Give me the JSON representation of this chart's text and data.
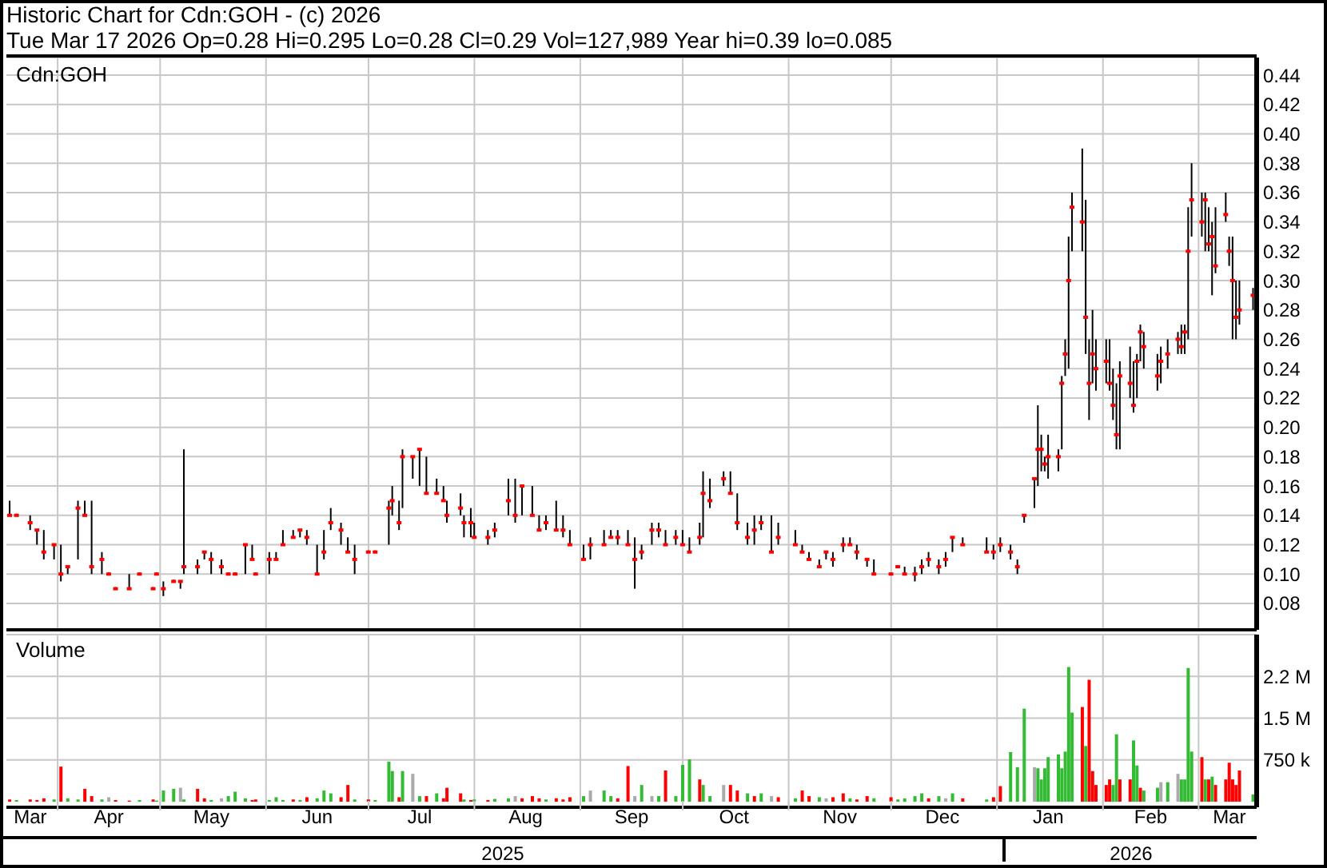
{
  "chart_data": [
    {
      "type": "candlestick",
      "title": "Historic Chart for Cdn:GOH - (c) 2026",
      "subtitle": "Tue Mar 17 2026  Op=0.28  Hi=0.295  Lo=0.28  Cl=0.29  Vol=127,989  Year hi=0.39  lo=0.085",
      "annotations": [
        "Cdn:GOH"
      ],
      "x": [
        "2025-03-18",
        "2025-03-20",
        "2025-03-24",
        "2025-03-26",
        "2025-03-28",
        "2025-03-31",
        "2025-04-02",
        "2025-04-04",
        "2025-04-07",
        "2025-04-09",
        "2025-04-11",
        "2025-04-14",
        "2025-04-16",
        "2025-04-18",
        "2025-04-22",
        "2025-04-25",
        "2025-04-29",
        "2025-04-30",
        "2025-05-02",
        "2025-05-05",
        "2025-05-07",
        "2025-05-08",
        "2025-05-12",
        "2025-05-14",
        "2025-05-16",
        "2025-05-19",
        "2025-05-21",
        "2025-05-23",
        "2025-05-26",
        "2025-05-28",
        "2025-05-29",
        "2025-06-02",
        "2025-06-04",
        "2025-06-06",
        "2025-06-09",
        "2025-06-11",
        "2025-06-13",
        "2025-06-16",
        "2025-06-18",
        "2025-06-20",
        "2025-06-23",
        "2025-06-25",
        "2025-06-27",
        "2025-07-01",
        "2025-07-03",
        "2025-07-07",
        "2025-07-08",
        "2025-07-10",
        "2025-07-11",
        "2025-07-14",
        "2025-07-16",
        "2025-07-18",
        "2025-07-21",
        "2025-07-23",
        "2025-07-24",
        "2025-07-28",
        "2025-07-29",
        "2025-07-31",
        "2025-08-01",
        "2025-08-05",
        "2025-08-07",
        "2025-08-11",
        "2025-08-13",
        "2025-08-15",
        "2025-08-18",
        "2025-08-20",
        "2025-08-22",
        "2025-08-25",
        "2025-08-27",
        "2025-08-29",
        "2025-09-02",
        "2025-09-04",
        "2025-09-08",
        "2025-09-10",
        "2025-09-12",
        "2025-09-15",
        "2025-09-17",
        "2025-09-19",
        "2025-09-22",
        "2025-09-24",
        "2025-09-26",
        "2025-09-29",
        "2025-10-01",
        "2025-10-03",
        "2025-10-06",
        "2025-10-07",
        "2025-10-09",
        "2025-10-13",
        "2025-10-15",
        "2025-10-17",
        "2025-10-20",
        "2025-10-22",
        "2025-10-24",
        "2025-10-27",
        "2025-10-29",
        "2025-11-03",
        "2025-11-05",
        "2025-11-07",
        "2025-11-10",
        "2025-11-12",
        "2025-11-14",
        "2025-11-17",
        "2025-11-19",
        "2025-11-21",
        "2025-11-24",
        "2025-11-26",
        "2025-12-01",
        "2025-12-03",
        "2025-12-05",
        "2025-12-08",
        "2025-12-10",
        "2025-12-12",
        "2025-12-15",
        "2025-12-17",
        "2025-12-19",
        "2025-12-22",
        "2025-12-29",
        "2025-12-31",
        "2026-01-02",
        "2026-01-05",
        "2026-01-07",
        "2026-01-09",
        "2026-01-12",
        "2026-01-13",
        "2026-01-14",
        "2026-01-15",
        "2026-01-16",
        "2026-01-19",
        "2026-01-20",
        "2026-01-21",
        "2026-01-22",
        "2026-01-23",
        "2026-01-26",
        "2026-01-27",
        "2026-01-28",
        "2026-01-29",
        "2026-01-30",
        "2026-02-02",
        "2026-02-03",
        "2026-02-04",
        "2026-02-05",
        "2026-02-06",
        "2026-02-09",
        "2026-02-10",
        "2026-02-11",
        "2026-02-12",
        "2026-02-13",
        "2026-02-17",
        "2026-02-18",
        "2026-02-20",
        "2026-02-23",
        "2026-02-24",
        "2026-02-25",
        "2026-02-26",
        "2026-02-27",
        "2026-03-02",
        "2026-03-03",
        "2026-03-04",
        "2026-03-05",
        "2026-03-06",
        "2026-03-09",
        "2026-03-10",
        "2026-03-11",
        "2026-03-12",
        "2026-03-13",
        "2026-03-17"
      ],
      "ohlc": [
        [
          0.14,
          0.15,
          0.14,
          0.14
        ],
        [
          0.14,
          0.14,
          0.14,
          0.14
        ],
        [
          0.135,
          0.14,
          0.13,
          0.135
        ],
        [
          0.13,
          0.13,
          0.12,
          0.13
        ],
        [
          0.115,
          0.13,
          0.11,
          0.115
        ],
        [
          0.12,
          0.12,
          0.11,
          0.12
        ],
        [
          0.1,
          0.12,
          0.095,
          0.1
        ],
        [
          0.105,
          0.105,
          0.1,
          0.105
        ],
        [
          0.145,
          0.15,
          0.11,
          0.145
        ],
        [
          0.14,
          0.15,
          0.14,
          0.14
        ],
        [
          0.105,
          0.15,
          0.1,
          0.105
        ],
        [
          0.11,
          0.115,
          0.1,
          0.11
        ],
        [
          0.1,
          0.1,
          0.1,
          0.1
        ],
        [
          0.09,
          0.09,
          0.09,
          0.09
        ],
        [
          0.09,
          0.1,
          0.09,
          0.09
        ],
        [
          0.1,
          0.1,
          0.1,
          0.1
        ],
        [
          0.09,
          0.09,
          0.09,
          0.09
        ],
        [
          0.1,
          0.1,
          0.1,
          0.1
        ],
        [
          0.09,
          0.095,
          0.085,
          0.09
        ],
        [
          0.095,
          0.095,
          0.095,
          0.095
        ],
        [
          0.095,
          0.095,
          0.09,
          0.095
        ],
        [
          0.105,
          0.185,
          0.1,
          0.105
        ],
        [
          0.105,
          0.11,
          0.1,
          0.105
        ],
        [
          0.115,
          0.115,
          0.11,
          0.115
        ],
        [
          0.11,
          0.115,
          0.1,
          0.11
        ],
        [
          0.105,
          0.11,
          0.1,
          0.105
        ],
        [
          0.1,
          0.1,
          0.1,
          0.1
        ],
        [
          0.1,
          0.1,
          0.1,
          0.1
        ],
        [
          0.12,
          0.12,
          0.1,
          0.12
        ],
        [
          0.11,
          0.12,
          0.11,
          0.11
        ],
        [
          0.1,
          0.1,
          0.1,
          0.1
        ],
        [
          0.11,
          0.115,
          0.1,
          0.11
        ],
        [
          0.11,
          0.115,
          0.11,
          0.11
        ],
        [
          0.12,
          0.13,
          0.12,
          0.12
        ],
        [
          0.125,
          0.13,
          0.125,
          0.125
        ],
        [
          0.13,
          0.13,
          0.125,
          0.13
        ],
        [
          0.125,
          0.13,
          0.12,
          0.125
        ],
        [
          0.1,
          0.12,
          0.1,
          0.1
        ],
        [
          0.115,
          0.13,
          0.11,
          0.115
        ],
        [
          0.135,
          0.145,
          0.13,
          0.135
        ],
        [
          0.13,
          0.135,
          0.12,
          0.13
        ],
        [
          0.115,
          0.125,
          0.115,
          0.115
        ],
        [
          0.11,
          0.12,
          0.1,
          0.11
        ],
        [
          0.115,
          0.115,
          0.115,
          0.115
        ],
        [
          0.115,
          0.115,
          0.115,
          0.115
        ],
        [
          0.145,
          0.15,
          0.12,
          0.145
        ],
        [
          0.15,
          0.16,
          0.14,
          0.15
        ],
        [
          0.135,
          0.15,
          0.13,
          0.135
        ],
        [
          0.18,
          0.185,
          0.145,
          0.18
        ],
        [
          0.18,
          0.18,
          0.165,
          0.18
        ],
        [
          0.185,
          0.185,
          0.16,
          0.185
        ],
        [
          0.155,
          0.18,
          0.155,
          0.155
        ],
        [
          0.155,
          0.165,
          0.155,
          0.155
        ],
        [
          0.15,
          0.16,
          0.15,
          0.15
        ],
        [
          0.14,
          0.15,
          0.135,
          0.14
        ],
        [
          0.145,
          0.155,
          0.14,
          0.145
        ],
        [
          0.135,
          0.14,
          0.125,
          0.135
        ],
        [
          0.135,
          0.145,
          0.125,
          0.135
        ],
        [
          0.125,
          0.135,
          0.125,
          0.125
        ],
        [
          0.125,
          0.13,
          0.12,
          0.125
        ],
        [
          0.13,
          0.135,
          0.125,
          0.13
        ],
        [
          0.15,
          0.165,
          0.14,
          0.15
        ],
        [
          0.14,
          0.165,
          0.135,
          0.14
        ],
        [
          0.16,
          0.16,
          0.14,
          0.16
        ],
        [
          0.14,
          0.16,
          0.14,
          0.14
        ],
        [
          0.13,
          0.14,
          0.13,
          0.13
        ],
        [
          0.135,
          0.14,
          0.13,
          0.135
        ],
        [
          0.13,
          0.15,
          0.13,
          0.13
        ],
        [
          0.13,
          0.14,
          0.125,
          0.13
        ],
        [
          0.12,
          0.13,
          0.12,
          0.12
        ],
        [
          0.11,
          0.12,
          0.11,
          0.11
        ],
        [
          0.12,
          0.125,
          0.11,
          0.12
        ],
        [
          0.12,
          0.13,
          0.12,
          0.12
        ],
        [
          0.125,
          0.13,
          0.125,
          0.125
        ],
        [
          0.125,
          0.13,
          0.12,
          0.125
        ],
        [
          0.12,
          0.13,
          0.12,
          0.12
        ],
        [
          0.11,
          0.125,
          0.09,
          0.11
        ],
        [
          0.115,
          0.12,
          0.11,
          0.115
        ],
        [
          0.13,
          0.135,
          0.12,
          0.13
        ],
        [
          0.13,
          0.135,
          0.125,
          0.13
        ],
        [
          0.12,
          0.13,
          0.12,
          0.12
        ],
        [
          0.125,
          0.13,
          0.12,
          0.125
        ],
        [
          0.12,
          0.13,
          0.12,
          0.12
        ],
        [
          0.115,
          0.125,
          0.115,
          0.115
        ],
        [
          0.125,
          0.135,
          0.12,
          0.125
        ],
        [
          0.155,
          0.17,
          0.125,
          0.155
        ],
        [
          0.15,
          0.165,
          0.145,
          0.15
        ],
        [
          0.165,
          0.17,
          0.16,
          0.165
        ],
        [
          0.155,
          0.17,
          0.155,
          0.155
        ],
        [
          0.135,
          0.155,
          0.13,
          0.135
        ],
        [
          0.125,
          0.135,
          0.12,
          0.125
        ],
        [
          0.13,
          0.14,
          0.12,
          0.13
        ],
        [
          0.135,
          0.14,
          0.13,
          0.135
        ],
        [
          0.115,
          0.14,
          0.115,
          0.115
        ],
        [
          0.125,
          0.135,
          0.12,
          0.125
        ],
        [
          0.12,
          0.13,
          0.12,
          0.12
        ],
        [
          0.115,
          0.12,
          0.115,
          0.115
        ],
        [
          0.11,
          0.115,
          0.11,
          0.11
        ],
        [
          0.105,
          0.11,
          0.105,
          0.105
        ],
        [
          0.115,
          0.115,
          0.11,
          0.115
        ],
        [
          0.11,
          0.115,
          0.105,
          0.11
        ],
        [
          0.12,
          0.125,
          0.115,
          0.12
        ],
        [
          0.12,
          0.125,
          0.12,
          0.12
        ],
        [
          0.115,
          0.12,
          0.11,
          0.115
        ],
        [
          0.11,
          0.11,
          0.105,
          0.11
        ],
        [
          0.1,
          0.11,
          0.1,
          0.1
        ],
        [
          0.1,
          0.1,
          0.1,
          0.1
        ],
        [
          0.105,
          0.105,
          0.105,
          0.105
        ],
        [
          0.1,
          0.105,
          0.1,
          0.1
        ],
        [
          0.1,
          0.105,
          0.095,
          0.1
        ],
        [
          0.105,
          0.11,
          0.1,
          0.105
        ],
        [
          0.11,
          0.115,
          0.105,
          0.11
        ],
        [
          0.105,
          0.11,
          0.1,
          0.105
        ],
        [
          0.11,
          0.115,
          0.105,
          0.11
        ],
        [
          0.125,
          0.125,
          0.115,
          0.125
        ],
        [
          0.12,
          0.125,
          0.12,
          0.12
        ],
        [
          0.115,
          0.125,
          0.115,
          0.115
        ],
        [
          0.115,
          0.12,
          0.11,
          0.115
        ],
        [
          0.12,
          0.125,
          0.115,
          0.12
        ],
        [
          0.115,
          0.12,
          0.11,
          0.115
        ],
        [
          0.105,
          0.11,
          0.1,
          0.105
        ],
        [
          0.14,
          0.14,
          0.135,
          0.14
        ],
        [
          0.165,
          0.165,
          0.145,
          0.165
        ],
        [
          0.185,
          0.215,
          0.16,
          0.185
        ],
        [
          0.185,
          0.195,
          0.17,
          0.185
        ],
        [
          0.175,
          0.18,
          0.17,
          0.175
        ],
        [
          0.18,
          0.195,
          0.165,
          0.18
        ],
        [
          0.18,
          0.185,
          0.17,
          0.18
        ],
        [
          0.23,
          0.235,
          0.185,
          0.23
        ],
        [
          0.25,
          0.26,
          0.235,
          0.25
        ],
        [
          0.3,
          0.33,
          0.24,
          0.3
        ],
        [
          0.35,
          0.36,
          0.32,
          0.35
        ],
        [
          0.34,
          0.39,
          0.32,
          0.34
        ],
        [
          0.275,
          0.355,
          0.25,
          0.275
        ],
        [
          0.23,
          0.26,
          0.205,
          0.23
        ],
        [
          0.25,
          0.28,
          0.23,
          0.25
        ],
        [
          0.24,
          0.26,
          0.225,
          0.24
        ],
        [
          0.245,
          0.26,
          0.23,
          0.245
        ],
        [
          0.23,
          0.26,
          0.225,
          0.23
        ],
        [
          0.215,
          0.24,
          0.205,
          0.215
        ],
        [
          0.195,
          0.23,
          0.185,
          0.195
        ],
        [
          0.235,
          0.245,
          0.185,
          0.235
        ],
        [
          0.23,
          0.255,
          0.22,
          0.23
        ],
        [
          0.215,
          0.245,
          0.21,
          0.215
        ],
        [
          0.245,
          0.25,
          0.22,
          0.245
        ],
        [
          0.265,
          0.27,
          0.245,
          0.265
        ],
        [
          0.255,
          0.265,
          0.24,
          0.255
        ],
        [
          0.235,
          0.25,
          0.225,
          0.235
        ],
        [
          0.245,
          0.255,
          0.23,
          0.245
        ],
        [
          0.25,
          0.26,
          0.24,
          0.25
        ],
        [
          0.26,
          0.265,
          0.25,
          0.26
        ],
        [
          0.255,
          0.27,
          0.25,
          0.255
        ],
        [
          0.265,
          0.27,
          0.25,
          0.265
        ],
        [
          0.32,
          0.35,
          0.26,
          0.32
        ],
        [
          0.355,
          0.38,
          0.33,
          0.355
        ],
        [
          0.34,
          0.36,
          0.33,
          0.34
        ],
        [
          0.355,
          0.36,
          0.32,
          0.355
        ],
        [
          0.325,
          0.35,
          0.32,
          0.325
        ],
        [
          0.33,
          0.34,
          0.29,
          0.33
        ],
        [
          0.31,
          0.35,
          0.305,
          0.31
        ],
        [
          0.345,
          0.36,
          0.34,
          0.345
        ],
        [
          0.32,
          0.33,
          0.31,
          0.32
        ],
        [
          0.3,
          0.33,
          0.26,
          0.3
        ],
        [
          0.275,
          0.3,
          0.26,
          0.275
        ],
        [
          0.28,
          0.3,
          0.27,
          0.28
        ],
        [
          0.29,
          0.295,
          0.28,
          0.29
        ]
      ],
      "xlim": [
        "2025-03-17",
        "2026-03-18"
      ],
      "xticks": [
        {
          "value": "2025-04-01",
          "label": null
        },
        {
          "value": "2025-05-01",
          "label": null
        },
        {
          "value": "2025-06-01",
          "label": null
        },
        {
          "value": "2025-07-01",
          "label": null
        },
        {
          "value": "2025-08-01",
          "label": null
        },
        {
          "value": "2025-09-01",
          "label": null
        },
        {
          "value": "2025-10-01",
          "label": null
        },
        {
          "value": "2025-11-01",
          "label": null
        },
        {
          "value": "2025-12-01",
          "label": null
        },
        {
          "value": "2026-01-01",
          "label": null
        },
        {
          "value": "2026-02-01",
          "label": null
        },
        {
          "value": "2026-03-01",
          "label": null
        }
      ],
      "ylim": [
        0.062,
        0.452
      ],
      "yticks": [
        0.08,
        {
          "value": 0.1,
          "label": "0.10"
        },
        0.12,
        0.14,
        0.16,
        0.18,
        {
          "value": 0.2,
          "label": "0.20"
        },
        0.22,
        0.24,
        0.26,
        0.28,
        {
          "value": 0.3,
          "label": "0.30"
        },
        0.32,
        0.34,
        0.36,
        0.38,
        {
          "value": 0.4,
          "label": "0.40"
        },
        0.42,
        0.44
      ],
      "grid": true,
      "tick_labels": "y"
    },
    {
      "type": "bar",
      "title": "Volume",
      "x": [
        "2025-03-18",
        "2025-03-20",
        "2025-03-24",
        "2025-03-26",
        "2025-03-28",
        "2025-03-31",
        "2025-04-02",
        "2025-04-04",
        "2025-04-07",
        "2025-04-09",
        "2025-04-11",
        "2025-04-14",
        "2025-04-16",
        "2025-04-18",
        "2025-04-22",
        "2025-04-25",
        "2025-04-29",
        "2025-04-30",
        "2025-05-02",
        "2025-05-05",
        "2025-05-07",
        "2025-05-08",
        "2025-05-12",
        "2025-05-14",
        "2025-05-16",
        "2025-05-19",
        "2025-05-21",
        "2025-05-23",
        "2025-05-26",
        "2025-05-28",
        "2025-05-29",
        "2025-06-02",
        "2025-06-04",
        "2025-06-06",
        "2025-06-09",
        "2025-06-11",
        "2025-06-13",
        "2025-06-16",
        "2025-06-18",
        "2025-06-20",
        "2025-06-23",
        "2025-06-25",
        "2025-06-27",
        "2025-07-01",
        "2025-07-03",
        "2025-07-07",
        "2025-07-08",
        "2025-07-10",
        "2025-07-11",
        "2025-07-14",
        "2025-07-16",
        "2025-07-18",
        "2025-07-21",
        "2025-07-23",
        "2025-07-24",
        "2025-07-28",
        "2025-07-29",
        "2025-07-31",
        "2025-08-01",
        "2025-08-05",
        "2025-08-07",
        "2025-08-11",
        "2025-08-13",
        "2025-08-15",
        "2025-08-18",
        "2025-08-20",
        "2025-08-22",
        "2025-08-25",
        "2025-08-27",
        "2025-08-29",
        "2025-09-02",
        "2025-09-04",
        "2025-09-08",
        "2025-09-10",
        "2025-09-12",
        "2025-09-15",
        "2025-09-17",
        "2025-09-19",
        "2025-09-22",
        "2025-09-24",
        "2025-09-26",
        "2025-09-29",
        "2025-10-01",
        "2025-10-03",
        "2025-10-06",
        "2025-10-07",
        "2025-10-09",
        "2025-10-13",
        "2025-10-15",
        "2025-10-17",
        "2025-10-20",
        "2025-10-22",
        "2025-10-24",
        "2025-10-27",
        "2025-10-29",
        "2025-11-03",
        "2025-11-05",
        "2025-11-07",
        "2025-11-10",
        "2025-11-12",
        "2025-11-14",
        "2025-11-17",
        "2025-11-19",
        "2025-11-21",
        "2025-11-24",
        "2025-11-26",
        "2025-12-01",
        "2025-12-03",
        "2025-12-05",
        "2025-12-08",
        "2025-12-10",
        "2025-12-12",
        "2025-12-15",
        "2025-12-17",
        "2025-12-19",
        "2025-12-22",
        "2025-12-29",
        "2025-12-31",
        "2026-01-02",
        "2026-01-05",
        "2026-01-07",
        "2026-01-09",
        "2026-01-12",
        "2026-01-13",
        "2026-01-14",
        "2026-01-15",
        "2026-01-16",
        "2026-01-19",
        "2026-01-20",
        "2026-01-21",
        "2026-01-22",
        "2026-01-23",
        "2026-01-26",
        "2026-01-27",
        "2026-01-28",
        "2026-01-29",
        "2026-01-30",
        "2026-02-02",
        "2026-02-03",
        "2026-02-04",
        "2026-02-05",
        "2026-02-06",
        "2026-02-09",
        "2026-02-10",
        "2026-02-11",
        "2026-02-12",
        "2026-02-13",
        "2026-02-17",
        "2026-02-18",
        "2026-02-20",
        "2026-02-23",
        "2026-02-24",
        "2026-02-25",
        "2026-02-26",
        "2026-02-27",
        "2026-03-02",
        "2026-03-03",
        "2026-03-04",
        "2026-03-05",
        "2026-03-06",
        "2026-03-09",
        "2026-03-10",
        "2026-03-11",
        "2026-03-12",
        "2026-03-13",
        "2026-03-17"
      ],
      "values": [
        40000,
        30000,
        40000,
        30000,
        60000,
        40000,
        630000,
        60000,
        40000,
        230000,
        100000,
        40000,
        80000,
        30000,
        20000,
        30000,
        40000,
        20000,
        200000,
        230000,
        250000,
        40000,
        230000,
        60000,
        30000,
        60000,
        100000,
        180000,
        60000,
        30000,
        40000,
        30000,
        80000,
        30000,
        40000,
        30000,
        80000,
        60000,
        200000,
        150000,
        80000,
        300000,
        40000,
        40000,
        30000,
        720000,
        550000,
        80000,
        550000,
        500000,
        100000,
        100000,
        150000,
        60000,
        250000,
        150000,
        40000,
        30000,
        40000,
        30000,
        50000,
        60000,
        100000,
        60000,
        100000,
        60000,
        40000,
        60000,
        40000,
        80000,
        100000,
        200000,
        200000,
        100000,
        60000,
        640000,
        100000,
        300000,
        100000,
        100000,
        560000,
        100000,
        660000,
        760000,
        400000,
        300000,
        100000,
        300000,
        300000,
        200000,
        150000,
        100000,
        150000,
        100000,
        80000,
        60000,
        200000,
        100000,
        80000,
        60000,
        80000,
        150000,
        60000,
        40000,
        100000,
        60000,
        80000,
        40000,
        60000,
        100000,
        150000,
        60000,
        100000,
        60000,
        150000,
        60000,
        40000,
        80000,
        280000,
        890000,
        620000,
        1670000,
        620000,
        600000,
        400000,
        600000,
        800000,
        850000,
        600000,
        900000,
        2420000,
        1600000,
        1700000,
        1000000,
        2190000,
        550000,
        300000,
        300000,
        400000,
        300000,
        1210000,
        400000,
        400000,
        1100000,
        650000,
        250000,
        200000,
        250000,
        350000,
        350000,
        500000,
        400000,
        400000,
        2400000,
        900000,
        800000,
        400000,
        400000,
        450000,
        300000,
        400000,
        700000,
        400000,
        300000,
        560000,
        130000
      ],
      "colors": [
        "#ff0000",
        "#33bb33",
        "#ff0000",
        "#ff0000",
        "#ff0000",
        "#33bb33",
        "#ff0000",
        "#33bb33",
        "#33bb33",
        "#ff0000",
        "#ff0000",
        "#33bb33",
        "#aaaaaa",
        "#ff0000",
        "#ff0000",
        "#33bb33",
        "#ff0000",
        "#33bb33",
        "#33bb33",
        "#33bb33",
        "#aaaaaa",
        "#33bb33",
        "#ff0000",
        "#ff0000",
        "#33bb33",
        "#aaaaaa",
        "#33bb33",
        "#33bb33",
        "#33bb33",
        "#ff0000",
        "#ff0000",
        "#33bb33",
        "#33bb33",
        "#33bb33",
        "#ff0000",
        "#33bb33",
        "#ff0000",
        "#33bb33",
        "#33bb33",
        "#33bb33",
        "#ff0000",
        "#ff0000",
        "#33bb33",
        "#ff0000",
        "#33bb33",
        "#33bb33",
        "#33bb33",
        "#ff0000",
        "#33bb33",
        "#aaaaaa",
        "#33bb33",
        "#ff0000",
        "#33bb33",
        "#ff0000",
        "#ff0000",
        "#ff0000",
        "#33bb33",
        "#ff0000",
        "#33bb33",
        "#ff0000",
        "#33bb33",
        "#33bb33",
        "#aaaaaa",
        "#ff0000",
        "#ff0000",
        "#ff0000",
        "#33bb33",
        "#ff0000",
        "#ff0000",
        "#ff0000",
        "#33bb33",
        "#aaaaaa",
        "#33bb33",
        "#33bb33",
        "#ff0000",
        "#ff0000",
        "#aaaaaa",
        "#33bb33",
        "#aaaaaa",
        "#33bb33",
        "#ff0000",
        "#33bb33",
        "#33bb33",
        "#33bb33",
        "#ff0000",
        "#33bb33",
        "#33bb33",
        "#aaaaaa",
        "#ff0000",
        "#ff0000",
        "#33bb33",
        "#ff0000",
        "#33bb33",
        "#aaaaaa",
        "#ff0000",
        "#33bb33",
        "#ff0000",
        "#ff0000",
        "#33bb33",
        "#aaaaaa",
        "#ff0000",
        "#ff0000",
        "#33bb33",
        "#ff0000",
        "#ff0000",
        "#33bb33",
        "#ff0000",
        "#33bb33",
        "#33bb33",
        "#33bb33",
        "#33bb33",
        "#ff0000",
        "#33bb33",
        "#aaaaaa",
        "#33bb33",
        "#ff0000",
        "#33bb33",
        "#ff0000",
        "#ff0000",
        "#33bb33",
        "#33bb33",
        "#33bb33",
        "#aaaaaa",
        "#33bb33",
        "#33bb33",
        "#33bb33",
        "#33bb33",
        "#33bb33",
        "#33bb33",
        "#33bb33",
        "#33bb33",
        "#33bb33",
        "#ff0000",
        "#33bb33",
        "#ff0000",
        "#ff0000",
        "#ff0000",
        "#ff0000",
        "#ff0000",
        "#33bb33",
        "#33bb33",
        "#ff0000",
        "#ff0000",
        "#33bb33",
        "#33bb33",
        "#ff0000",
        "#33bb33",
        "#33bb33",
        "#aaaaaa",
        "#33bb33",
        "#aaaaaa",
        "#33bb33",
        "#33bb33",
        "#33bb33",
        "#33bb33",
        "#ff0000",
        "#33bb33",
        "#ff0000",
        "#33bb33",
        "#ff0000",
        "#ff0000",
        "#ff0000",
        "#ff0000",
        "#ff0000",
        "#ff0000",
        "#33bb33"
      ],
      "xlim": [
        "2025-03-17",
        "2026-03-18"
      ],
      "xticks": [
        {
          "value": "2025-03-24",
          "label": "Mar"
        },
        {
          "value": "2025-04-01",
          "label": null
        },
        {
          "value": "2025-04-16",
          "label": "Apr"
        },
        {
          "value": "2025-05-01",
          "label": null
        },
        {
          "value": "2025-05-16",
          "label": "May"
        },
        {
          "value": "2025-06-01",
          "label": null
        },
        {
          "value": "2025-06-16",
          "label": "Jun"
        },
        {
          "value": "2025-07-01",
          "label": null
        },
        {
          "value": "2025-07-16",
          "label": "Jul"
        },
        {
          "value": "2025-08-01",
          "label": null
        },
        {
          "value": "2025-08-16",
          "label": "Aug"
        },
        {
          "value": "2025-09-01",
          "label": null
        },
        {
          "value": "2025-09-16",
          "label": "Sep"
        },
        {
          "value": "2025-10-01",
          "label": null
        },
        {
          "value": "2025-10-16",
          "label": "Oct"
        },
        {
          "value": "2025-11-01",
          "label": null
        },
        {
          "value": "2025-11-16",
          "label": "Nov"
        },
        {
          "value": "2025-12-01",
          "label": null
        },
        {
          "value": "2025-12-16",
          "label": "Dec"
        },
        {
          "value": "2026-01-01",
          "label": null
        },
        {
          "value": "2026-01-16",
          "label": "Jan"
        },
        {
          "value": "2026-02-01",
          "label": null
        },
        {
          "value": "2026-02-15",
          "label": "Feb"
        },
        {
          "value": "2026-03-01",
          "label": null
        },
        {
          "value": "2026-03-10",
          "label": "Mar"
        }
      ],
      "ylim": [
        -100000,
        3000000
      ],
      "yticks": [
        {
          "value": 750000,
          "label": "750 k"
        },
        {
          "value": 1500000,
          "label": "1.5 M"
        },
        {
          "value": 2250000,
          "label": "2.2 M"
        }
      ],
      "grid": true,
      "annotations": [
        "2025",
        "2026"
      ]
    }
  ]
}
